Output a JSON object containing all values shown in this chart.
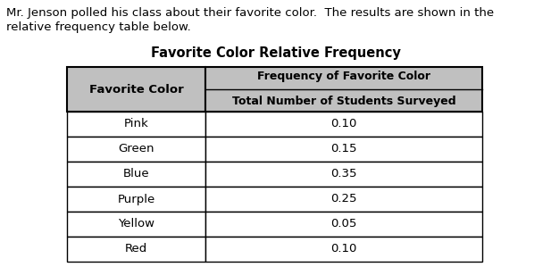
{
  "intro_text_line1": "Mr. Jenson polled his class about their favorite color.  The results are shown in the",
  "intro_text_line2": "relative frequency table below.",
  "table_title": "Favorite Color Relative Frequency",
  "col1_header": "Favorite Color",
  "col2_header_line1": "Frequency of Favorite Color",
  "col2_header_line2": "Total Number of Students Surveyed",
  "rows": [
    [
      "Pink",
      "0.10"
    ],
    [
      "Green",
      "0.15"
    ],
    [
      "Blue",
      "0.35"
    ],
    [
      "Purple",
      "0.25"
    ],
    [
      "Yellow",
      "0.05"
    ],
    [
      "Red",
      "0.10"
    ]
  ],
  "header_bg": "#c0c0c0",
  "row_bg": "#ffffff",
  "border_color": "#000000",
  "text_color": "#000000",
  "background_color": "#ffffff",
  "intro_fontsize": 9.5,
  "title_fontsize": 10.5,
  "cell_fontsize": 9.5
}
